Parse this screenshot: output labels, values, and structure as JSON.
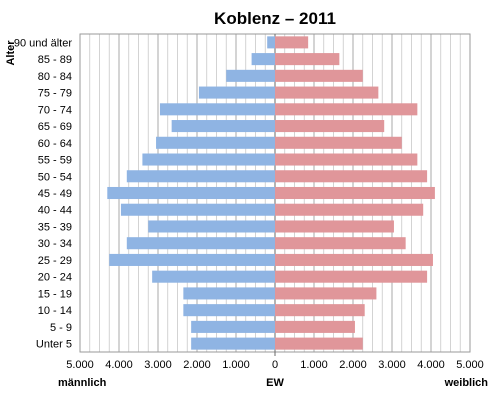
{
  "chart_data": {
    "type": "bar",
    "orientation": "horizontal-population-pyramid",
    "title": "Koblenz – 2011",
    "ylabel": "Alter",
    "xlabel": "EW",
    "left_label": "männlich",
    "right_label": "weiblich",
    "xlim": [
      -5000,
      5000
    ],
    "xticks": [
      -5000,
      -4000,
      -3000,
      -2000,
      -1000,
      0,
      1000,
      2000,
      3000,
      4000,
      5000
    ],
    "xtick_labels": [
      "5.000",
      "4.000",
      "3.000",
      "2.000",
      "1.000",
      "0",
      "1.000",
      "2.000",
      "3.000",
      "4.000",
      "5.000"
    ],
    "grid": true,
    "categories": [
      "90 und älter",
      "85 - 89",
      "80 - 84",
      "75 - 79",
      "70 - 74",
      "65 - 69",
      "60 - 64",
      "55 - 59",
      "50 - 54",
      "45 - 49",
      "40 - 44",
      "35 - 39",
      "30 - 34",
      "25 - 29",
      "20 - 24",
      "15 - 19",
      "10 - 14",
      "5 - 9",
      "Unter 5"
    ],
    "series": [
      {
        "side": "left",
        "color": "#8fb4e3",
        "values": [
          200,
          600,
          1250,
          1950,
          2950,
          2650,
          3050,
          3400,
          3800,
          4300,
          3950,
          3250,
          3800,
          4250,
          3150,
          2350,
          2350,
          2150,
          2150
        ]
      },
      {
        "side": "right",
        "color": "#e0969a",
        "values": [
          850,
          1650,
          2250,
          2650,
          3650,
          2800,
          3250,
          3650,
          3900,
          4100,
          3800,
          3050,
          3350,
          4050,
          3900,
          2600,
          2300,
          2050,
          2250
        ]
      }
    ]
  }
}
